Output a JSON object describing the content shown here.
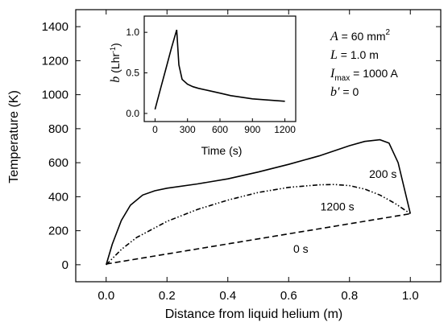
{
  "chart_data": [
    {
      "type": "line",
      "xlabel": "Distance from liquid helium (m)",
      "ylabel": "Temperature (K)",
      "xlim": [
        -0.1,
        1.1
      ],
      "ylim": [
        -100,
        1500
      ],
      "xticks": [
        0.0,
        0.2,
        0.4,
        0.6,
        0.8,
        1.0
      ],
      "xtick_labels": [
        "0.0",
        "0.2",
        "0.4",
        "0.6",
        "0.8",
        "1.0"
      ],
      "yticks": [
        0,
        200,
        400,
        600,
        800,
        1000,
        1200,
        1400
      ],
      "ytick_labels": [
        "0",
        "200",
        "400",
        "600",
        "800",
        "1000",
        "1200",
        "1400"
      ],
      "series": [
        {
          "name": "200 s",
          "style": "solid",
          "x": [
            0.0,
            0.02,
            0.05,
            0.08,
            0.12,
            0.16,
            0.2,
            0.3,
            0.4,
            0.5,
            0.6,
            0.7,
            0.8,
            0.85,
            0.9,
            0.93,
            0.96,
            1.0
          ],
          "y": [
            0,
            120,
            260,
            350,
            410,
            435,
            450,
            475,
            505,
            545,
            590,
            640,
            700,
            725,
            735,
            715,
            600,
            300
          ]
        },
        {
          "name": "1200 s",
          "style": "dash-dot-dot",
          "x": [
            0.0,
            0.05,
            0.1,
            0.2,
            0.3,
            0.4,
            0.5,
            0.6,
            0.7,
            0.75,
            0.8,
            0.85,
            0.9,
            0.95,
            1.0
          ],
          "y": [
            0,
            90,
            160,
            255,
            325,
            380,
            425,
            455,
            470,
            472,
            465,
            445,
            410,
            360,
            300
          ]
        },
        {
          "name": "0 s",
          "style": "dashed",
          "x": [
            0.0,
            1.0
          ],
          "y": [
            4,
            300
          ]
        }
      ],
      "series_labels": [
        {
          "text": "200 s",
          "x": 0.91,
          "y": 510
        },
        {
          "text": "1200 s",
          "x": 0.76,
          "y": 320
        },
        {
          "text": "0 s",
          "x": 0.64,
          "y": 70
        }
      ],
      "annotations": [
        {
          "sym": "A",
          "eq": " = 60 mm",
          "sup": "2"
        },
        {
          "sym": "L",
          "eq": " = 1.0 m"
        },
        {
          "sym": "I",
          "sub": "max",
          "eq": " = 1000 A"
        },
        {
          "sym": "b′",
          "eq": " = 0"
        }
      ]
    },
    {
      "type": "line",
      "inset": true,
      "xlabel": "Time (s)",
      "ylabel_symbol": "b",
      "ylabel_unit": " (Lhr",
      "ylabel_sup": "-1",
      "ylabel_close": ")",
      "xlim": [
        -100,
        1300
      ],
      "ylim": [
        -0.1,
        1.2
      ],
      "xticks": [
        0,
        300,
        600,
        900,
        1200
      ],
      "xtick_labels": [
        "0",
        "300",
        "600",
        "900",
        "1200"
      ],
      "yticks": [
        0.0,
        0.5,
        1.0
      ],
      "ytick_labels": [
        "0.0",
        "0.5",
        "1.0"
      ],
      "series": [
        {
          "name": "",
          "x": [
            0,
            50,
            100,
            150,
            200,
            220,
            250,
            300,
            350,
            400,
            500,
            600,
            700,
            800,
            900,
            1000,
            1100,
            1200
          ],
          "y": [
            0.05,
            0.3,
            0.55,
            0.8,
            1.03,
            0.6,
            0.42,
            0.36,
            0.33,
            0.31,
            0.28,
            0.25,
            0.22,
            0.2,
            0.18,
            0.17,
            0.16,
            0.15
          ]
        }
      ]
    }
  ]
}
